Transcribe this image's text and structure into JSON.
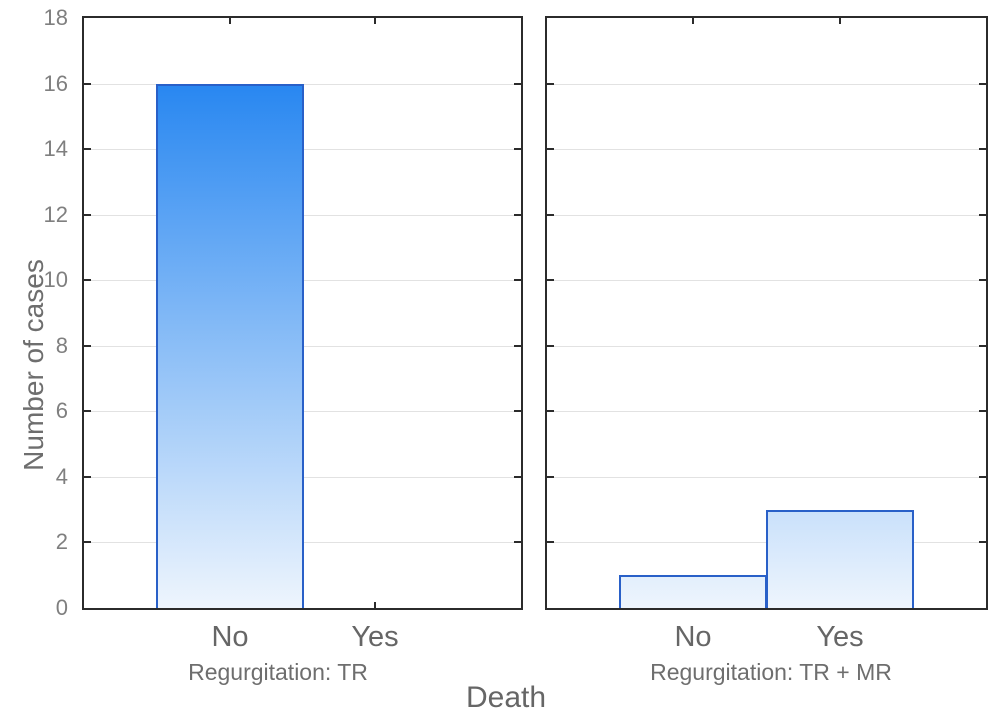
{
  "chart_data": {
    "type": "bar",
    "title": "",
    "xlabel": "Death",
    "ylabel": "Number of cases",
    "ylim": [
      0,
      18
    ],
    "ytick_step": 2,
    "yticks": [
      0,
      2,
      4,
      6,
      8,
      10,
      12,
      14,
      16,
      18
    ],
    "grid": true,
    "legend": "none",
    "panels": [
      {
        "label": "Regurgitation: TR",
        "categories": [
          "No",
          "Yes"
        ],
        "values": [
          16,
          0
        ]
      },
      {
        "label": "Regurgitation: TR + MR",
        "categories": [
          "No",
          "Yes"
        ],
        "values": [
          1,
          3
        ]
      }
    ],
    "colors": {
      "bar_gradient_top": "#0f79ef",
      "bar_gradient_bottom": "#eef5fd",
      "bar_border": "#2960c8",
      "frame": "#2b2b2b",
      "gridline": "#e2e2e2",
      "tick_mark": "#2b2b2b",
      "tick_label": "#7f7f7f",
      "category_label": "#666666",
      "panel_label": "#6e6e6e",
      "axis_label": "#6e6e6e",
      "background": "#ffffff"
    }
  }
}
